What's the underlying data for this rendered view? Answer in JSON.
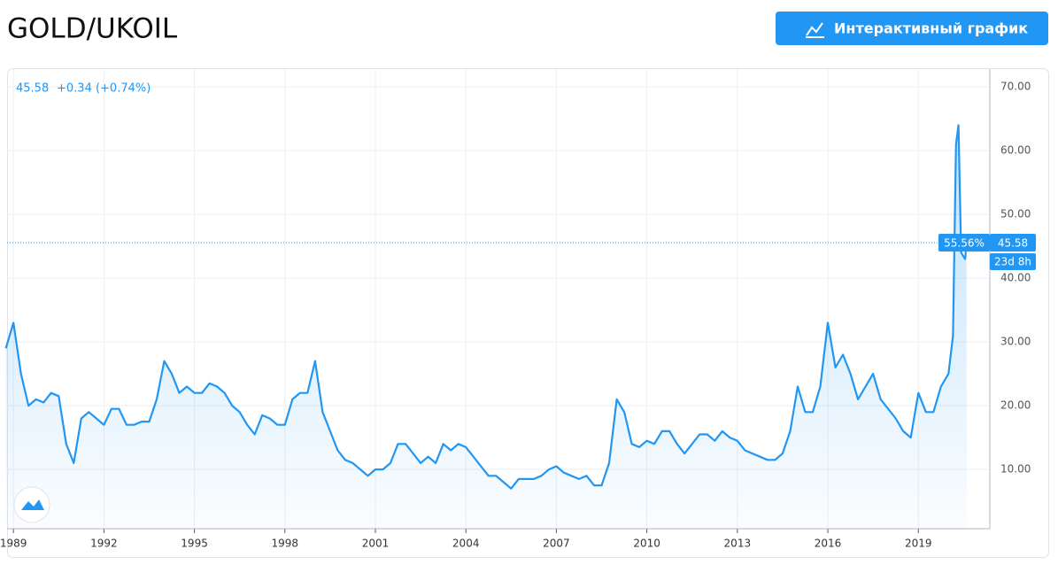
{
  "chart_data": {
    "type": "line",
    "title": "GOLD/UKOIL",
    "button": "Интерактивный график",
    "last": {
      "value": 45.58,
      "change": "+0.34 (+0.74%)",
      "change_badge": "55.56%",
      "countdown": "23d 8h"
    },
    "x": [
      1988.75,
      1989,
      1989.25,
      1989.5,
      1989.75,
      1990,
      1990.25,
      1990.5,
      1990.75,
      1991,
      1991.25,
      1991.5,
      1991.75,
      1992,
      1992.25,
      1992.5,
      1992.75,
      1993,
      1993.25,
      1993.5,
      1993.75,
      1994,
      1994.25,
      1994.5,
      1994.75,
      1995,
      1995.25,
      1995.5,
      1995.75,
      1996,
      1996.25,
      1996.5,
      1996.75,
      1997,
      1997.25,
      1997.5,
      1997.75,
      1998,
      1998.25,
      1998.5,
      1998.75,
      1999,
      1999.25,
      1999.5,
      1999.75,
      2000,
      2000.25,
      2000.5,
      2000.75,
      2001,
      2001.25,
      2001.5,
      2001.75,
      2002,
      2002.25,
      2002.5,
      2002.75,
      2003,
      2003.25,
      2003.5,
      2003.75,
      2004,
      2004.25,
      2004.5,
      2004.75,
      2005,
      2005.25,
      2005.5,
      2005.75,
      2006,
      2006.25,
      2006.5,
      2006.75,
      2007,
      2007.25,
      2007.5,
      2007.75,
      2008,
      2008.25,
      2008.5,
      2008.75,
      2009,
      2009.25,
      2009.5,
      2009.75,
      2010,
      2010.25,
      2010.5,
      2010.75,
      2011,
      2011.25,
      2011.5,
      2011.75,
      2012,
      2012.25,
      2012.5,
      2012.75,
      2013,
      2013.25,
      2013.5,
      2013.75,
      2014,
      2014.25,
      2014.5,
      2014.75,
      2015,
      2015.25,
      2015.5,
      2015.75,
      2016,
      2016.25,
      2016.5,
      2016.75,
      2017,
      2017.25,
      2017.5,
      2017.75,
      2018,
      2018.25,
      2018.5,
      2018.75,
      2019,
      2019.25,
      2019.5,
      2019.75,
      2020,
      2020.15,
      2020.25,
      2020.33,
      2020.42,
      2020.55,
      2020.6
    ],
    "series": [
      {
        "name": "GOLD/UKOIL",
        "color": "#2196f3",
        "values": [
          29,
          33,
          25,
          20,
          21,
          20.5,
          22,
          21.5,
          14,
          11,
          18,
          19,
          18,
          17,
          19.5,
          19.5,
          17,
          17,
          17.5,
          17.5,
          21,
          27,
          25,
          22,
          23,
          22,
          22,
          23.5,
          23,
          22,
          20,
          19,
          17,
          15.5,
          18.5,
          18,
          17,
          17,
          21,
          22,
          22,
          27,
          19,
          16,
          13,
          11.5,
          11,
          10,
          9,
          10,
          10,
          11,
          14,
          14,
          12.5,
          11,
          12,
          11,
          14,
          13,
          14,
          13.5,
          12,
          10.5,
          9,
          9,
          8,
          7,
          8.5,
          8.5,
          8.5,
          9,
          10,
          10.5,
          9.5,
          9,
          8.5,
          9,
          7.5,
          7.5,
          11,
          21,
          19,
          14,
          13.5,
          14.5,
          14,
          16,
          16,
          14,
          12.5,
          14,
          15.5,
          15.5,
          14.5,
          16,
          15,
          14.5,
          13,
          12.5,
          12,
          11.5,
          11.5,
          12.5,
          16,
          23,
          19,
          19,
          23,
          33,
          26,
          28,
          25,
          21,
          23,
          25,
          21,
          19.5,
          18,
          16,
          15,
          22,
          19,
          19,
          23,
          25,
          31,
          61,
          64,
          44,
          43,
          45.58
        ]
      }
    ],
    "xlim": [
      1988.79,
      2021.37
    ],
    "ylim": [
      0.7,
      72.8
    ],
    "xticks": [
      1989,
      1992,
      1995,
      1998,
      2001,
      2004,
      2007,
      2010,
      2013,
      2016,
      2019
    ],
    "yticks": [
      {
        "value": 10,
        "label": "10.00"
      },
      {
        "value": 20,
        "label": "20.00"
      },
      {
        "value": 30,
        "label": "30.00"
      },
      {
        "value": 40,
        "label": "40.00"
      },
      {
        "value": 50,
        "label": "50.00"
      },
      {
        "value": 60,
        "label": "60.00"
      },
      {
        "value": 70,
        "label": "70.00"
      }
    ],
    "grid": true
  }
}
